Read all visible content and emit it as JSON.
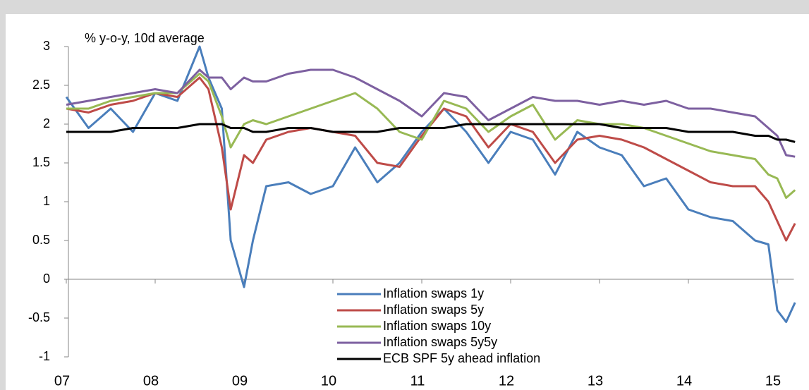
{
  "chart_data": {
    "type": "line",
    "y_label": "% y-o-y, 10d average",
    "x": [
      2007.0,
      2007.25,
      2007.5,
      2007.75,
      2008.0,
      2008.25,
      2008.5,
      2008.6,
      2008.75,
      2008.85,
      2009.0,
      2009.1,
      2009.25,
      2009.5,
      2009.75,
      2010.0,
      2010.25,
      2010.5,
      2010.75,
      2011.0,
      2011.25,
      2011.5,
      2011.75,
      2012.0,
      2012.25,
      2012.5,
      2012.75,
      2013.0,
      2013.25,
      2013.5,
      2013.75,
      2014.0,
      2014.25,
      2014.5,
      2014.75,
      2014.9,
      2015.0,
      2015.1,
      2015.2
    ],
    "series": [
      {
        "name": "Inflation swaps 1y",
        "color": "#4a7ebb",
        "values": [
          2.35,
          1.95,
          2.2,
          1.9,
          2.4,
          2.3,
          3.0,
          2.6,
          2.2,
          0.5,
          -0.1,
          0.5,
          1.2,
          1.25,
          1.1,
          1.2,
          1.7,
          1.25,
          1.5,
          1.9,
          2.2,
          1.9,
          1.5,
          1.9,
          1.8,
          1.35,
          1.9,
          1.7,
          1.6,
          1.2,
          1.3,
          0.9,
          0.8,
          0.75,
          0.5,
          0.45,
          -0.4,
          -0.55,
          -0.3
        ]
      },
      {
        "name": "Inflation swaps 5y",
        "color": "#be4b48",
        "values": [
          2.2,
          2.15,
          2.25,
          2.3,
          2.4,
          2.35,
          2.6,
          2.45,
          1.7,
          0.9,
          1.6,
          1.5,
          1.8,
          1.9,
          1.95,
          1.9,
          1.85,
          1.5,
          1.45,
          1.85,
          2.2,
          2.1,
          1.7,
          2.0,
          1.9,
          1.5,
          1.8,
          1.85,
          1.8,
          1.7,
          1.55,
          1.4,
          1.25,
          1.2,
          1.2,
          1.0,
          0.75,
          0.5,
          0.72
        ]
      },
      {
        "name": "Inflation swaps 10y",
        "color": "#98b954",
        "values": [
          2.2,
          2.2,
          2.3,
          2.35,
          2.4,
          2.4,
          2.65,
          2.55,
          2.1,
          1.7,
          2.0,
          2.05,
          2.0,
          2.1,
          2.2,
          2.3,
          2.4,
          2.2,
          1.9,
          1.8,
          2.3,
          2.2,
          1.9,
          2.1,
          2.25,
          1.8,
          2.05,
          2.0,
          2.0,
          1.95,
          1.85,
          1.75,
          1.65,
          1.6,
          1.55,
          1.35,
          1.3,
          1.05,
          1.15
        ]
      },
      {
        "name": "Inflation swaps 5y5y",
        "color": "#7d60a0",
        "values": [
          2.25,
          2.3,
          2.35,
          2.4,
          2.45,
          2.4,
          2.7,
          2.6,
          2.6,
          2.45,
          2.6,
          2.55,
          2.55,
          2.65,
          2.7,
          2.7,
          2.6,
          2.45,
          2.3,
          2.1,
          2.4,
          2.35,
          2.05,
          2.2,
          2.35,
          2.3,
          2.3,
          2.25,
          2.3,
          2.25,
          2.3,
          2.2,
          2.2,
          2.15,
          2.1,
          1.95,
          1.85,
          1.6,
          1.58
        ]
      },
      {
        "name": "ECB SPF 5y ahead inflation",
        "color": "#000000",
        "values": [
          1.9,
          1.9,
          1.9,
          1.95,
          1.95,
          1.95,
          2.0,
          2.0,
          2.0,
          1.95,
          1.95,
          1.9,
          1.9,
          1.95,
          1.95,
          1.9,
          1.9,
          1.9,
          1.95,
          1.95,
          1.95,
          2.0,
          2.0,
          2.0,
          2.0,
          2.0,
          2.0,
          2.0,
          1.95,
          1.95,
          1.95,
          1.9,
          1.9,
          1.9,
          1.85,
          1.85,
          1.8,
          1.8,
          1.77
        ]
      }
    ],
    "xlim": [
      2007,
      2015.25
    ],
    "xticks": [
      {
        "value": 2007,
        "label": "07"
      },
      {
        "value": 2008,
        "label": "08"
      },
      {
        "value": 2009,
        "label": "09"
      },
      {
        "value": 2010,
        "label": "10"
      },
      {
        "value": 2011,
        "label": "11"
      },
      {
        "value": 2012,
        "label": "12"
      },
      {
        "value": 2013,
        "label": "13"
      },
      {
        "value": 2014,
        "label": "14"
      },
      {
        "value": 2015,
        "label": "15"
      }
    ],
    "ylim": [
      -1,
      3
    ],
    "yticks": [
      -1,
      -0.5,
      0,
      0.5,
      1,
      1.5,
      2,
      2.5,
      3
    ],
    "grid": false,
    "legend": "bottom"
  }
}
